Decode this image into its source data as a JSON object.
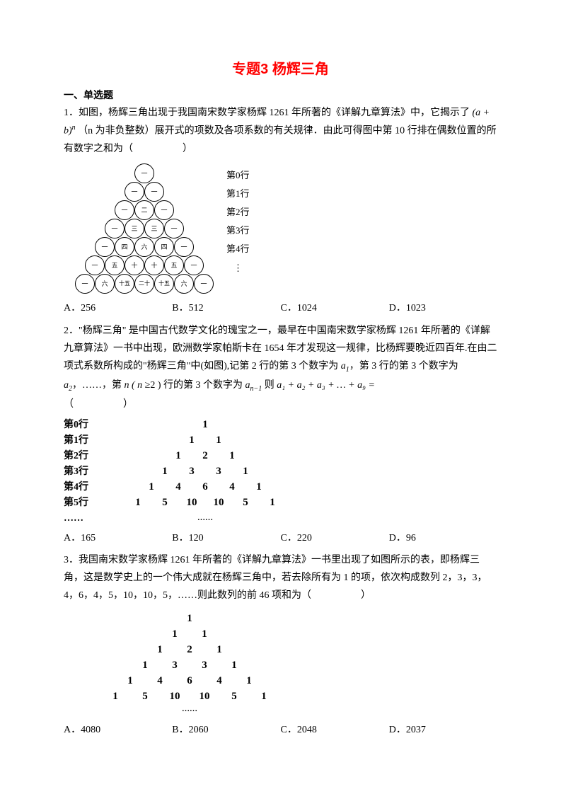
{
  "title": "专题3 杨辉三角",
  "section": "一、单选题",
  "q1": {
    "num": "1．",
    "text_a": "如图，杨辉三角出现于我国南宋数学家杨辉 1261 年所著的《详解九章算法》中，它揭示了",
    "formula": "(a + b)",
    "exp": "n",
    "text_b": "（n 为非负整数）展开式的项数及各项系数的有关规律．由此可得图中第 10 行排在偶数位置的所有数字之和为（　　　　　）",
    "row_labels": [
      "第0行",
      "第1行",
      "第2行",
      "第3行",
      "第4行"
    ],
    "circles": [
      [
        "一"
      ],
      [
        "一",
        "一"
      ],
      [
        "一",
        "二",
        "一"
      ],
      [
        "一",
        "三",
        "三",
        "一"
      ],
      [
        "一",
        "四",
        "六",
        "四",
        "一"
      ],
      [
        "一",
        "五",
        "十",
        "十",
        "五",
        "一"
      ],
      [
        "一",
        "六",
        "十五",
        "二十",
        "十五",
        "六",
        "一"
      ]
    ],
    "options": {
      "A": "256",
      "B": "512",
      "C": "1024",
      "D": "1023"
    }
  },
  "q2": {
    "num": "2．",
    "text_a": "\"杨辉三角\" 是中国古代数学文化的瑰宝之一，最早在中国南宋数学家杨辉 1261 年所著的《详解九章算法》一书中出现，欧洲数学家帕斯卡在 1654 年才发现这一规律，比杨辉要晚近四百年.在由二项式系数所构成的\"杨辉三角\"中(如图),记第 2 行的第 3 个数字为",
    "a1": "a",
    "sub1": "1",
    "mid1": "，第 3 行的第 3 个数字为",
    "a2": "a",
    "sub2": "2",
    "mid2": "，……，第",
    "nvar": "n ( n ≥",
    "mid3": "2 ) 行的第 3 个数字为",
    "an": "a",
    "subn": "n−1",
    "mid4": " 则",
    "sum_expr": "a₁ + a₂ + a₃ + … + a₉ =",
    "paren": "（　　　　　）",
    "rows": [
      {
        "label": "第0行",
        "cells": [
          "1"
        ]
      },
      {
        "label": "第1行",
        "cells": [
          "1",
          "1"
        ]
      },
      {
        "label": "第2行",
        "cells": [
          "1",
          "2",
          "1"
        ]
      },
      {
        "label": "第3行",
        "cells": [
          "1",
          "3",
          "3",
          "1"
        ]
      },
      {
        "label": "第4行",
        "cells": [
          "1",
          "4",
          "6",
          "4",
          "1"
        ]
      },
      {
        "label": "第5行",
        "cells": [
          "1",
          "5",
          "10",
          "10",
          "5",
          "1"
        ]
      }
    ],
    "dots": "……",
    "options": {
      "A": "165",
      "B": "120",
      "C": "220",
      "D": "96"
    }
  },
  "q3": {
    "num": "3．",
    "text": "我国南宋数学家杨辉 1261 年所著的《详解九章算法》一书里出现了如图所示的表，即杨辉三角，这是数学史上的一个伟大成就在杨辉三角中，若去除所有为 1 的项，依次构成数列 2，3，3，4，6，4，5，10，10，5，……则此数列的前 46 项和为（　　　　　）",
    "rows": [
      [
        "1"
      ],
      [
        "1",
        "1"
      ],
      [
        "1",
        "2",
        "1"
      ],
      [
        "1",
        "3",
        "3",
        "1"
      ],
      [
        "1",
        "4",
        "6",
        "4",
        "1"
      ],
      [
        "1",
        "5",
        "10",
        "10",
        "5",
        "1"
      ]
    ],
    "dots": "……",
    "options": {
      "A": "4080",
      "B": "2060",
      "C": "2048",
      "D": "2037"
    }
  }
}
